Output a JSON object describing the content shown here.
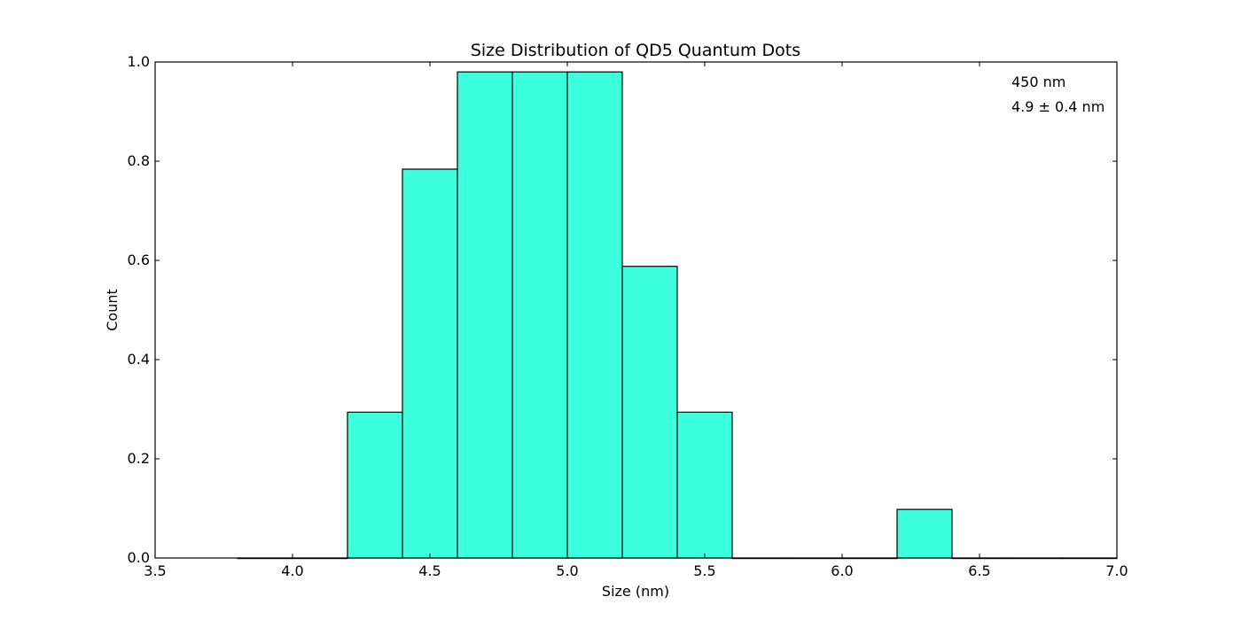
{
  "chart_data": {
    "type": "bar",
    "title": "Size Distribution of QD5 Quantum Dots",
    "xlabel": "Size (nm)",
    "ylabel": "Count",
    "xlim": [
      3.5,
      7.0
    ],
    "ylim": [
      0.0,
      1.0
    ],
    "x_ticks": [
      "3.5",
      "4.0",
      "4.5",
      "5.0",
      "5.5",
      "6.0",
      "6.5",
      "7.0"
    ],
    "y_ticks": [
      "0.0",
      "0.2",
      "0.4",
      "0.6",
      "0.8",
      "1.0"
    ],
    "bin_width": 0.2,
    "bins": [
      {
        "start": 3.8,
        "value": 0.0
      },
      {
        "start": 4.0,
        "value": 0.0
      },
      {
        "start": 4.2,
        "value": 0.294
      },
      {
        "start": 4.4,
        "value": 0.784
      },
      {
        "start": 4.6,
        "value": 0.98
      },
      {
        "start": 4.8,
        "value": 0.98
      },
      {
        "start": 5.0,
        "value": 0.98
      },
      {
        "start": 5.2,
        "value": 0.588
      },
      {
        "start": 5.4,
        "value": 0.294
      },
      {
        "start": 5.6,
        "value": 0.0
      },
      {
        "start": 5.8,
        "value": 0.0
      },
      {
        "start": 6.0,
        "value": 0.0
      },
      {
        "start": 6.2,
        "value": 0.098
      },
      {
        "start": 6.4,
        "value": 0.0
      },
      {
        "start": 6.6,
        "value": 0.0
      },
      {
        "start": 6.8,
        "value": 0.0
      }
    ],
    "annotations": [
      "450 nm",
      "4.9 ± 0.4 nm"
    ],
    "grid": false,
    "bar_color": "#3cffdc",
    "edge_color": "#000000"
  }
}
